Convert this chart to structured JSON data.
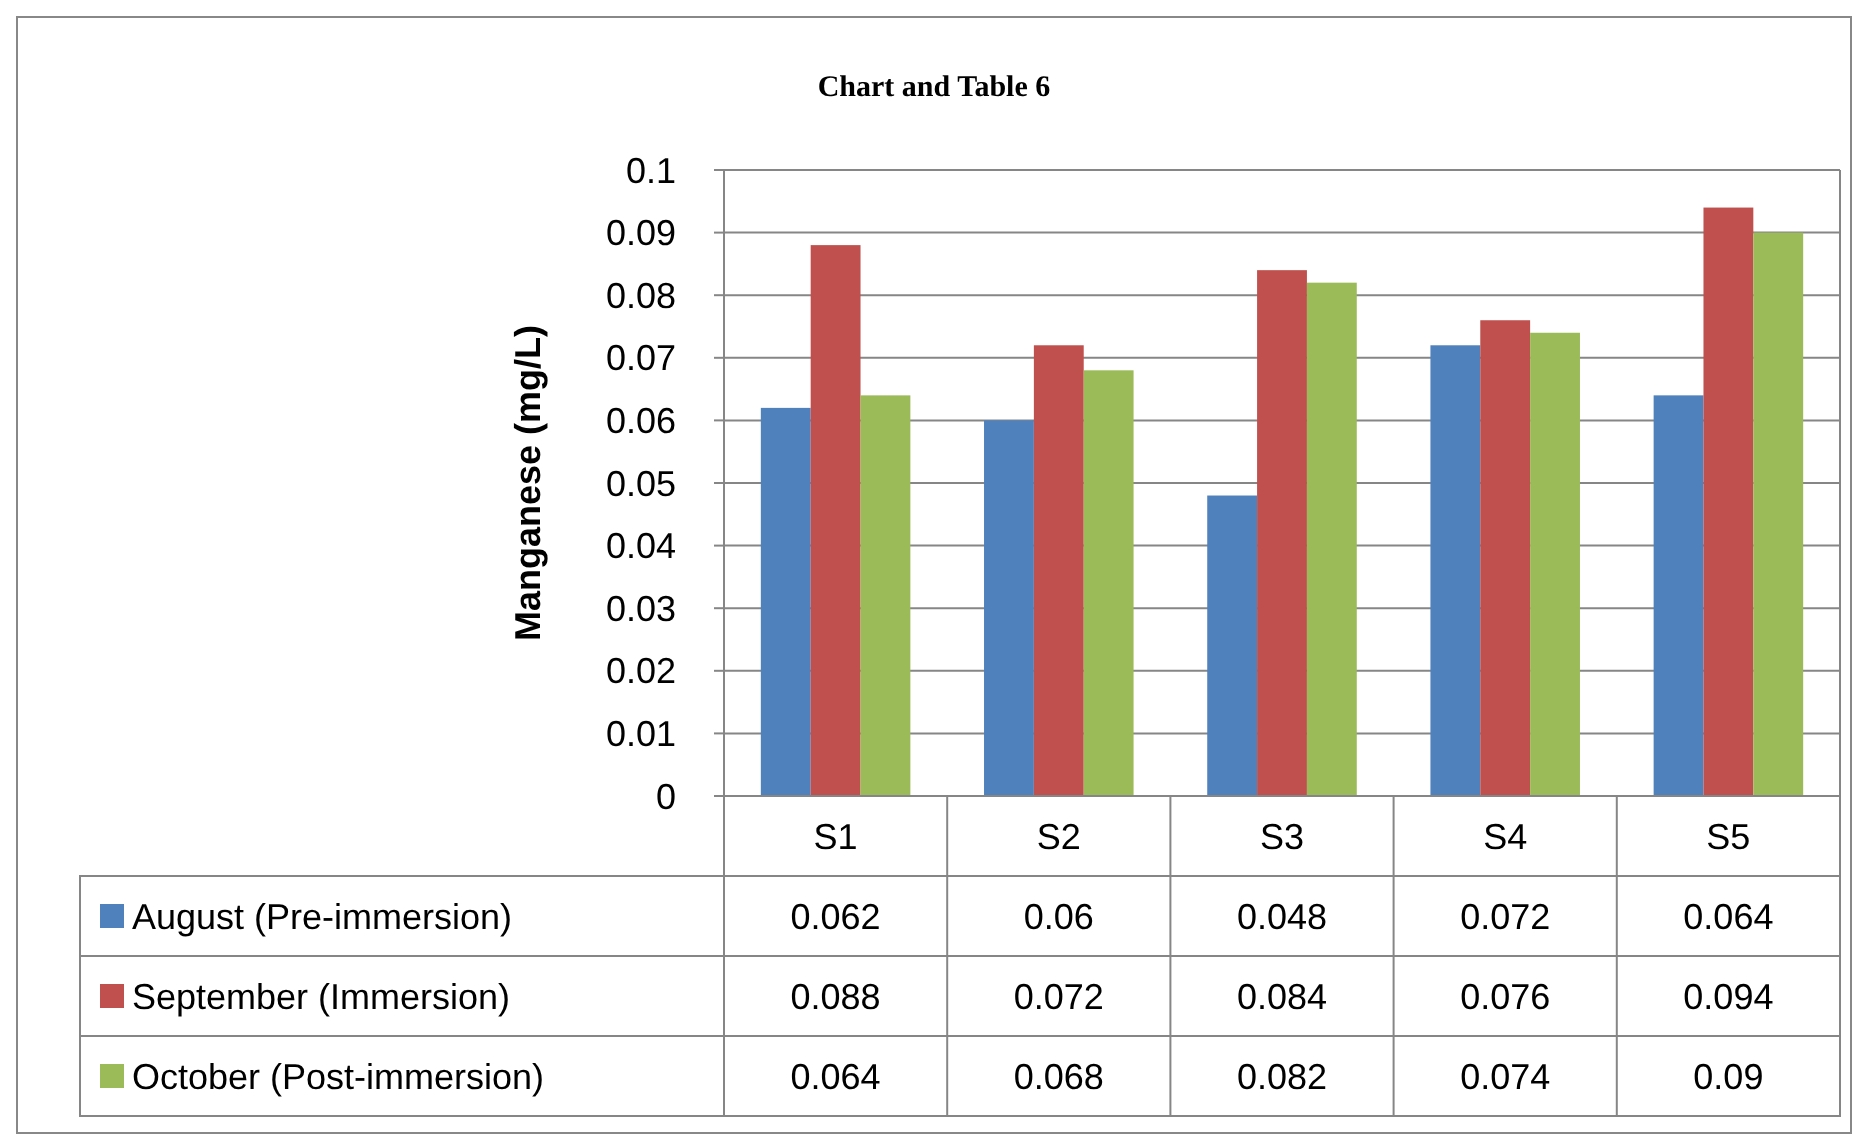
{
  "chart_data": {
    "type": "bar",
    "title": "Chart and Table 6",
    "ylabel": "Manganese (mg/L)",
    "categories": [
      "S1",
      "S2",
      "S3",
      "S4",
      "S5"
    ],
    "series": [
      {
        "name": "August (Pre-immersion)",
        "color": "#4f81bd",
        "values": [
          0.062,
          0.06,
          0.048,
          0.072,
          0.064
        ]
      },
      {
        "name": "September (Immersion)",
        "color": "#c0504d",
        "values": [
          0.088,
          0.072,
          0.084,
          0.076,
          0.094
        ]
      },
      {
        "name": "October (Post-immersion)",
        "color": "#9bbb59",
        "values": [
          0.064,
          0.068,
          0.082,
          0.074,
          0.09
        ]
      }
    ],
    "ylim": [
      0,
      0.1
    ],
    "yticks": [
      0,
      0.01,
      0.02,
      0.03,
      0.04,
      0.05,
      0.06,
      0.07,
      0.08,
      0.09,
      0.1
    ],
    "grid": "y",
    "data_labels": true,
    "legend": "bottom"
  }
}
